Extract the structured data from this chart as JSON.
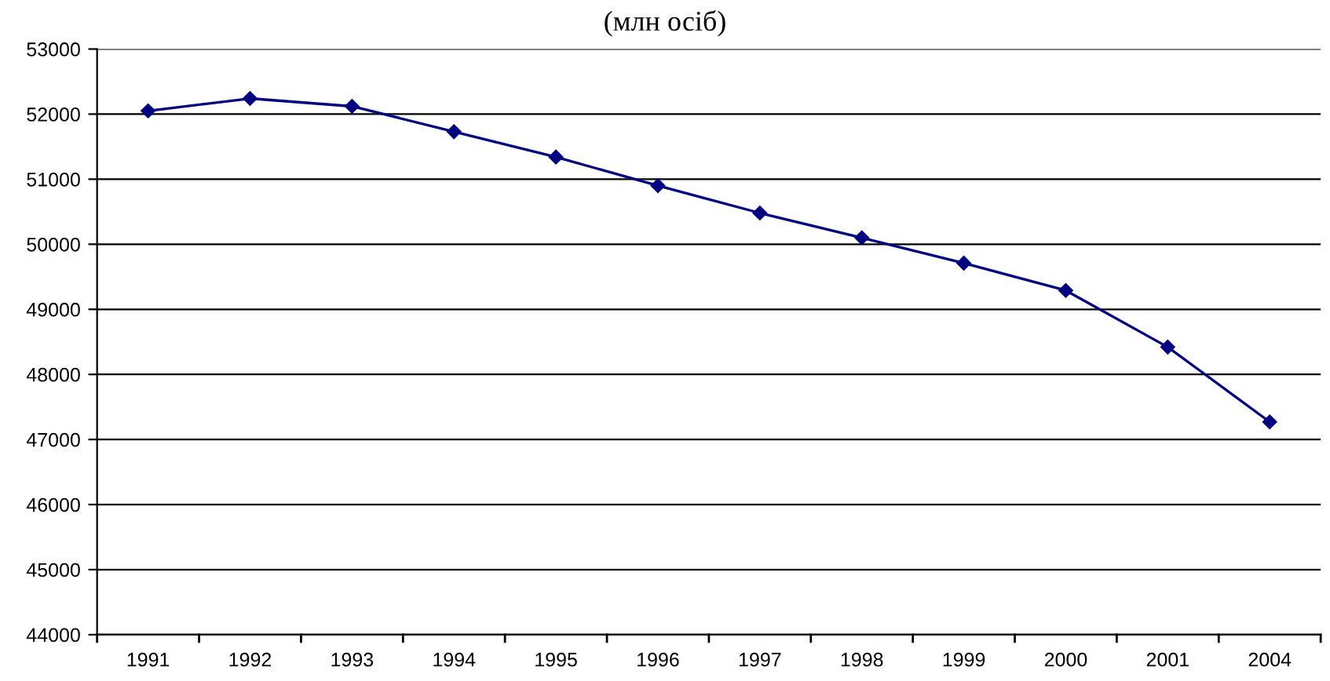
{
  "chart_data": {
    "type": "line",
    "title": "(млн осіб)",
    "categories": [
      "1991",
      "1992",
      "1993",
      "1994",
      "1995",
      "1996",
      "1997",
      "1998",
      "1999",
      "2000",
      "2001",
      "2004"
    ],
    "series": [
      {
        "color": "#000080",
        "values": [
          52050,
          52240,
          52120,
          51730,
          51340,
          50900,
          50480,
          50100,
          49710,
          49290,
          48420,
          47270
        ]
      }
    ],
    "ylim": [
      44000,
      53000
    ],
    "yticks": [
      44000,
      45000,
      46000,
      47000,
      48000,
      49000,
      50000,
      51000,
      52000,
      53000
    ],
    "grid": "y",
    "marker": "diamond",
    "line_style": "solid"
  }
}
